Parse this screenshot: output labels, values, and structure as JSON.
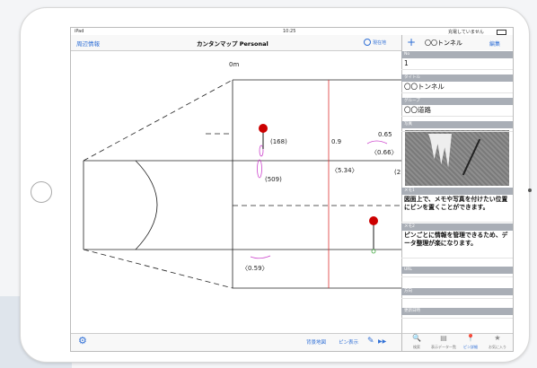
{
  "status_bar": {
    "device": "iPad",
    "time": "10:25",
    "battery": "充電していません"
  },
  "nav_bar": {
    "left": "周辺情報",
    "title": "カンタンマップ Personal",
    "right": "現在地"
  },
  "drawing": {
    "labels": [
      "0m",
      "(168)",
      "(509)",
      "0.9",
      "0.65",
      "〈0.66〉",
      "〈5.34〉",
      "(2",
      "〈0.59〉"
    ]
  },
  "detail_panel": {
    "add": "+",
    "title": "〇〇トンネル",
    "edit": "編集",
    "fields": [
      {
        "label": "No",
        "value": "1"
      },
      {
        "label": "タイトル",
        "value": "〇〇トンネル"
      },
      {
        "label": "グループ",
        "value": "〇〇道路"
      },
      {
        "label": "写真"
      },
      {
        "label": "メモ1",
        "value": "図面上で、メモや写真を付けたい位置にピンを置くことができます。"
      },
      {
        "label": "メモ2",
        "value": "ピンごとに情報を管理できるため、データ整理が楽になります。"
      },
      {
        "label": "URL"
      },
      {
        "label": "方向"
      },
      {
        "label": "更新日時"
      }
    ]
  },
  "toolbar": {
    "items": [
      "背景地図",
      "ピン表示"
    ]
  },
  "tab_bar": {
    "items": [
      "検索",
      "表示データ一覧",
      "ピン詳細",
      "お気に入り"
    ]
  }
}
